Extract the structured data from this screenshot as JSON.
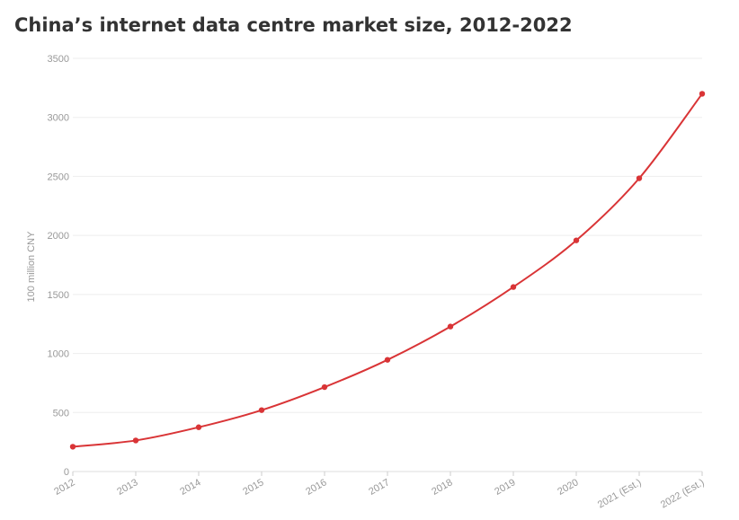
{
  "chart_data": {
    "type": "line",
    "title": "China’s internet data centre market size, 2012-2022",
    "xlabel": "",
    "ylabel": "100 million CNY",
    "categories": [
      "2012",
      "2013",
      "2014",
      "2015",
      "2016",
      "2017",
      "2018",
      "2019",
      "2020",
      "2021 (Est.)",
      "2022 (Est.)"
    ],
    "series": [
      {
        "values": [
          210,
          263,
          375,
          520,
          715,
          946,
          1228,
          1563,
          1958,
          2484,
          3200
        ]
      }
    ],
    "ylim": [
      0,
      3500
    ],
    "yticks": [
      0,
      500,
      1000,
      1500,
      2000,
      2500,
      3000,
      3500
    ],
    "grid": true,
    "colors": {
      "series": "#d93436",
      "grid": "#eeeeee",
      "ticks": "#999999",
      "title": "#333333"
    }
  }
}
